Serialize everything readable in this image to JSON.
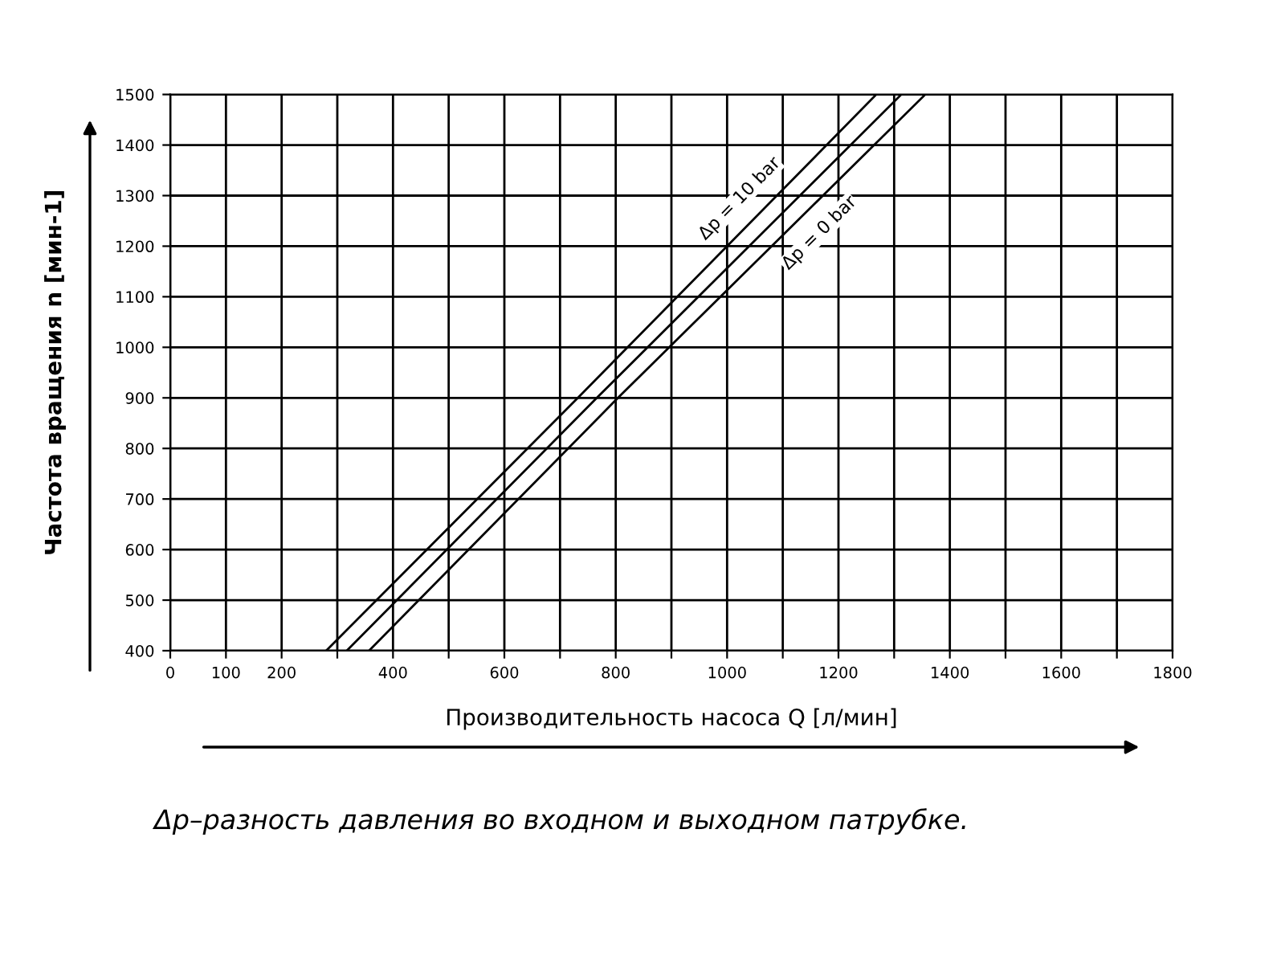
{
  "chart_data": {
    "type": "line",
    "xlabel": "Производительность насоса Q [л/мин]",
    "ylabel": "Частота вращения n [мин-1]",
    "series": [
      {
        "name": "Δp = 10 bar",
        "color": "#000000",
        "x": [
          280,
          732,
          1268
        ],
        "values": [
          400,
          900,
          1500
        ]
      },
      {
        "color": "#000000",
        "x": [
          317,
          766,
          1313
        ],
        "values": [
          400,
          900,
          1500
        ]
      },
      {
        "name": "Δp = 0 bar",
        "color": "#000000",
        "x": [
          357,
          804,
          1356
        ],
        "values": [
          400,
          900,
          1500
        ]
      }
    ],
    "xlim": [
      0,
      1800
    ],
    "ylim": [
      400,
      1500
    ],
    "xticks": [
      0,
      100,
      200,
      {
        "value": 300,
        "label": null
      },
      400,
      {
        "value": 500,
        "label": null
      },
      600,
      {
        "value": 700,
        "label": null
      },
      800,
      {
        "value": 900,
        "label": null
      },
      1000,
      {
        "value": 1100,
        "label": null
      },
      1200,
      {
        "value": 1300,
        "label": null
      },
      1400,
      {
        "value": 1500,
        "label": null
      },
      1600,
      {
        "value": 1700,
        "label": null
      },
      1800
    ],
    "yticks": [
      400,
      500,
      600,
      700,
      800,
      900,
      1000,
      1100,
      1200,
      1300,
      1400,
      1500
    ],
    "grid": true,
    "legend": false,
    "marker": "none",
    "line_style": "solid",
    "annotations": [
      "Δр–разность давления во входном и выходном патрубке."
    ]
  }
}
